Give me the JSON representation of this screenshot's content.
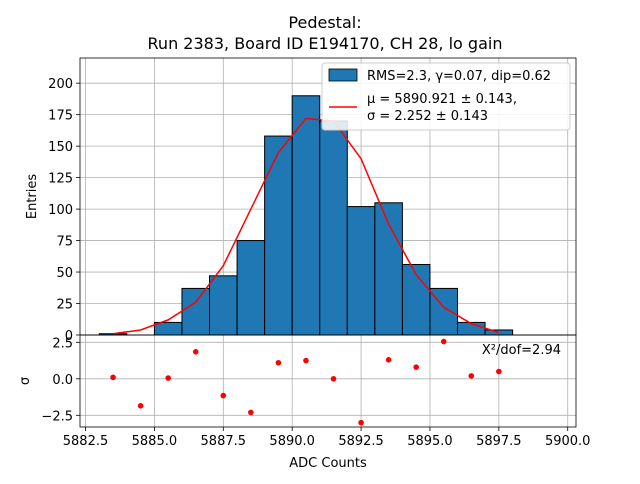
{
  "chart_data": [
    {
      "type": "bar",
      "title_line1": "Pedestal:",
      "title_line2": "Run 2383, Board ID E194170, CH 28, lo gain",
      "ylabel": "Entries",
      "xlim": [
        5882.3,
        5900.3
      ],
      "ylim": [
        0,
        220
      ],
      "yticks": [
        "0",
        "25",
        "50",
        "75",
        "100",
        "125",
        "150",
        "175",
        "200"
      ],
      "grid": true,
      "legend_position": "top-right",
      "hist": {
        "bin_edges": [
          5883,
          5884,
          5885,
          5886,
          5887,
          5888,
          5889,
          5890,
          5891,
          5892,
          5893,
          5894,
          5895,
          5896,
          5897,
          5898
        ],
        "counts": [
          1,
          0,
          10,
          37,
          47,
          75,
          158,
          190,
          170,
          102,
          105,
          56,
          37,
          10,
          4
        ],
        "color": "#1f77b4",
        "label": "RMS=2.3, γ=0.07, dip=0.62"
      },
      "fit": {
        "x": [
          5883.5,
          5884.5,
          5885.5,
          5886.5,
          5887.5,
          5888.5,
          5889.5,
          5890.5,
          5891.5,
          5892.5,
          5893.5,
          5894.5,
          5895.5,
          5896.5,
          5897.5
        ],
        "y": [
          1,
          4,
          12,
          26,
          55,
          100,
          145,
          172,
          170,
          140,
          88,
          48,
          22,
          9,
          2
        ],
        "color": "#ff0000",
        "label_line1": "μ = 5890.921 ± 0.143,",
        "label_line2": "σ = 2.252 ± 0.143"
      }
    },
    {
      "type": "scatter",
      "xlabel": "ADC Counts",
      "ylabel": "σ",
      "xlim": [
        5882.3,
        5900.3
      ],
      "ylim": [
        -3.3,
        3.0
      ],
      "xticks": [
        "5882.5",
        "5885.0",
        "5887.5",
        "5890.0",
        "5892.5",
        "5895.0",
        "5897.5",
        "5900.0"
      ],
      "yticks": [
        "−2.5",
        "0.0",
        "2.5"
      ],
      "grid": true,
      "annotation": "X²/dof=2.94",
      "color": "#ff0000",
      "x": [
        5883.5,
        5884.5,
        5885.5,
        5886.5,
        5887.5,
        5888.5,
        5889.5,
        5890.5,
        5891.5,
        5892.5,
        5893.5,
        5894.5,
        5895.5,
        5896.5,
        5897.5
      ],
      "y": [
        0.1,
        -1.85,
        0.05,
        1.85,
        -1.15,
        -2.3,
        1.1,
        1.25,
        0.0,
        -3.0,
        1.3,
        0.8,
        2.55,
        0.2,
        0.5
      ]
    }
  ]
}
